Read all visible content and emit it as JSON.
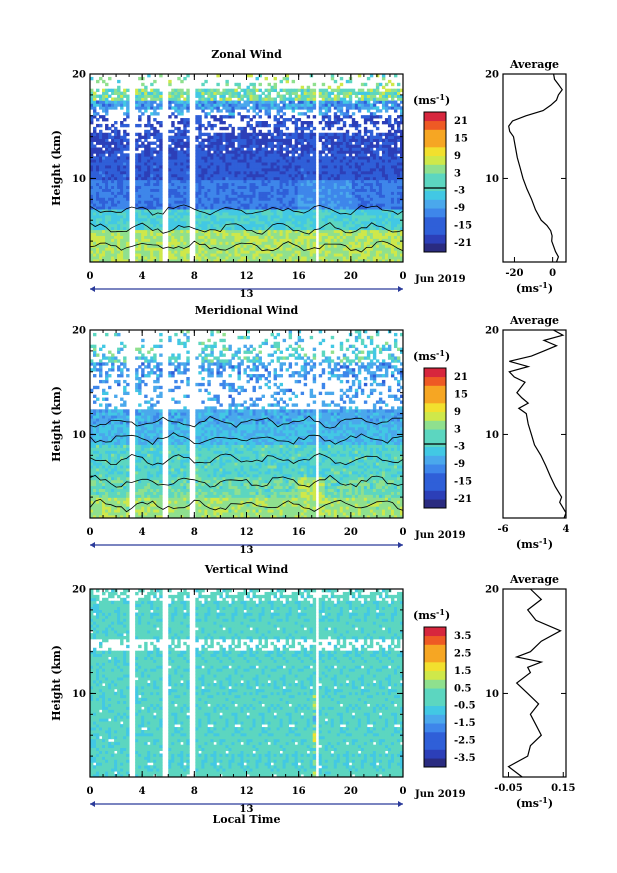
{
  "chart_data": [
    {
      "type": "heatmap",
      "title": "Zonal Wind",
      "ylabel": "Height (km)",
      "yticks": [
        "20",
        "10"
      ],
      "xticks": [
        "0",
        "4",
        "8",
        "12",
        "16",
        "20",
        "0"
      ],
      "date_label": "13",
      "month_label": "Jun 2019",
      "ylim": [
        2,
        20
      ],
      "xlim": [
        0,
        24
      ],
      "colorbar": {
        "unit": "(ms",
        "unit_sup": "-1",
        "unit_close": ")",
        "ticks": [
          "21",
          "15",
          "9",
          "3",
          "-3",
          "-9",
          "-15",
          "-21"
        ],
        "range": [
          -24,
          24
        ]
      },
      "gap_hours": [
        2.9,
        3.4,
        5.6,
        6.0,
        7.7,
        8.1,
        17.4,
        17.6
      ],
      "profile": {
        "title": "Average",
        "xticks": [
          "-20",
          "0"
        ],
        "xlim": [
          -26,
          7
        ],
        "xunit": "(ms",
        "xunit_sup": "-1",
        "xunit_close": ")",
        "yticks": [
          "20",
          "10"
        ],
        "heights": [
          2.0,
          2.5,
          3.0,
          3.5,
          4.0,
          4.5,
          5.0,
          5.5,
          6.0,
          7.0,
          8.0,
          9.0,
          10.0,
          11.0,
          12.0,
          13.0,
          14.0,
          14.5,
          15.0,
          15.5,
          16.0,
          16.5,
          17.0,
          17.5,
          18.0,
          18.5,
          19.0,
          19.5,
          20.0
        ],
        "values": [
          2.0,
          3.0,
          1.5,
          0.5,
          -0.5,
          -0.3,
          -1.0,
          -3.0,
          -6.0,
          -9.0,
          -11.0,
          -13.5,
          -15.5,
          -17.0,
          -18.5,
          -19.5,
          -20.5,
          -22.5,
          -23.0,
          -21.0,
          -14.0,
          -5.0,
          -1.0,
          2.0,
          3.0,
          5.0,
          3.0,
          1.0,
          0.5
        ]
      }
    },
    {
      "type": "heatmap",
      "title": "Meridional Wind",
      "ylabel": "Height (km)",
      "yticks": [
        "20",
        "10"
      ],
      "xticks": [
        "0",
        "4",
        "8",
        "12",
        "16",
        "20",
        "0"
      ],
      "date_label": "13",
      "month_label": "Jun 2019",
      "ylim": [
        2,
        20
      ],
      "xlim": [
        0,
        24
      ],
      "colorbar": {
        "unit": "(ms",
        "unit_sup": "-1",
        "unit_close": ")",
        "ticks": [
          "21",
          "15",
          "9",
          "3",
          "-3",
          "-9",
          "-15",
          "-21"
        ],
        "range": [
          -24,
          24
        ]
      },
      "gap_hours": [
        2.9,
        3.4,
        5.6,
        6.0,
        7.7,
        8.1,
        17.4,
        17.6
      ],
      "profile": {
        "title": "Average",
        "xticks": [
          "-6",
          "4"
        ],
        "xlim": [
          -6,
          4
        ],
        "xunit": "(ms",
        "xunit_sup": "-1",
        "xunit_close": ")",
        "yticks": [
          "20",
          "10"
        ],
        "heights": [
          2.0,
          2.5,
          3.0,
          3.5,
          4.0,
          5.0,
          6.0,
          7.0,
          8.0,
          9.0,
          10.0,
          11.0,
          12.0,
          12.5,
          13.0,
          13.5,
          14.0,
          15.0,
          15.5,
          16.0,
          16.5,
          17.0,
          17.5,
          18.0,
          18.5,
          19.0,
          19.5,
          20.0
        ],
        "values": [
          3.7,
          4.0,
          3.5,
          3.0,
          3.3,
          2.3,
          1.5,
          0.8,
          0.0,
          -1.0,
          -1.5,
          -2.0,
          -2.3,
          -3.5,
          -2.0,
          -3.0,
          -3.8,
          -2.5,
          -4.2,
          -5.0,
          -2.0,
          -5.0,
          -1.5,
          0.5,
          2.5,
          0.5,
          3.5,
          2.0
        ]
      }
    },
    {
      "type": "heatmap",
      "title": "Vertical Wind",
      "ylabel": "Height (km)",
      "yticks": [
        "20",
        "10"
      ],
      "xticks": [
        "0",
        "4",
        "8",
        "12",
        "16",
        "20",
        "0"
      ],
      "date_label": "13",
      "month_label": "Jun 2019",
      "xlabel": "Local Time",
      "ylim": [
        2,
        20
      ],
      "xlim": [
        0,
        24
      ],
      "colorbar": {
        "unit": "(ms",
        "unit_sup": "-1",
        "unit_close": ")",
        "ticks": [
          "3.5",
          "2.5",
          "1.5",
          "0.5",
          "-0.5",
          "-1.5",
          "-2.5",
          "-3.5"
        ],
        "range": [
          -4,
          4
        ]
      },
      "gap_hours": [
        2.9,
        3.4,
        5.6,
        6.0,
        7.7,
        8.1,
        17.4,
        17.6
      ],
      "profile": {
        "title": "Average",
        "xticks": [
          "-0.05",
          "0.15"
        ],
        "xlim": [
          -0.07,
          0.16
        ],
        "xunit": "(ms",
        "xunit_sup": "-1",
        "xunit_close": ")",
        "yticks": [
          "20",
          "10"
        ],
        "heights": [
          2.0,
          3.0,
          4.0,
          5.0,
          6.0,
          7.0,
          8.0,
          9.0,
          10.0,
          11.0,
          12.0,
          12.5,
          13.0,
          13.5,
          14.0,
          15.0,
          16.0,
          17.0,
          18.0,
          19.0,
          20.0
        ],
        "values": [
          0.0,
          -0.05,
          0.02,
          0.03,
          0.07,
          0.05,
          0.03,
          0.06,
          0.02,
          -0.02,
          0.03,
          0.02,
          0.07,
          -0.02,
          0.03,
          0.07,
          0.14,
          0.05,
          0.02,
          0.07,
          0.03
        ]
      }
    }
  ]
}
